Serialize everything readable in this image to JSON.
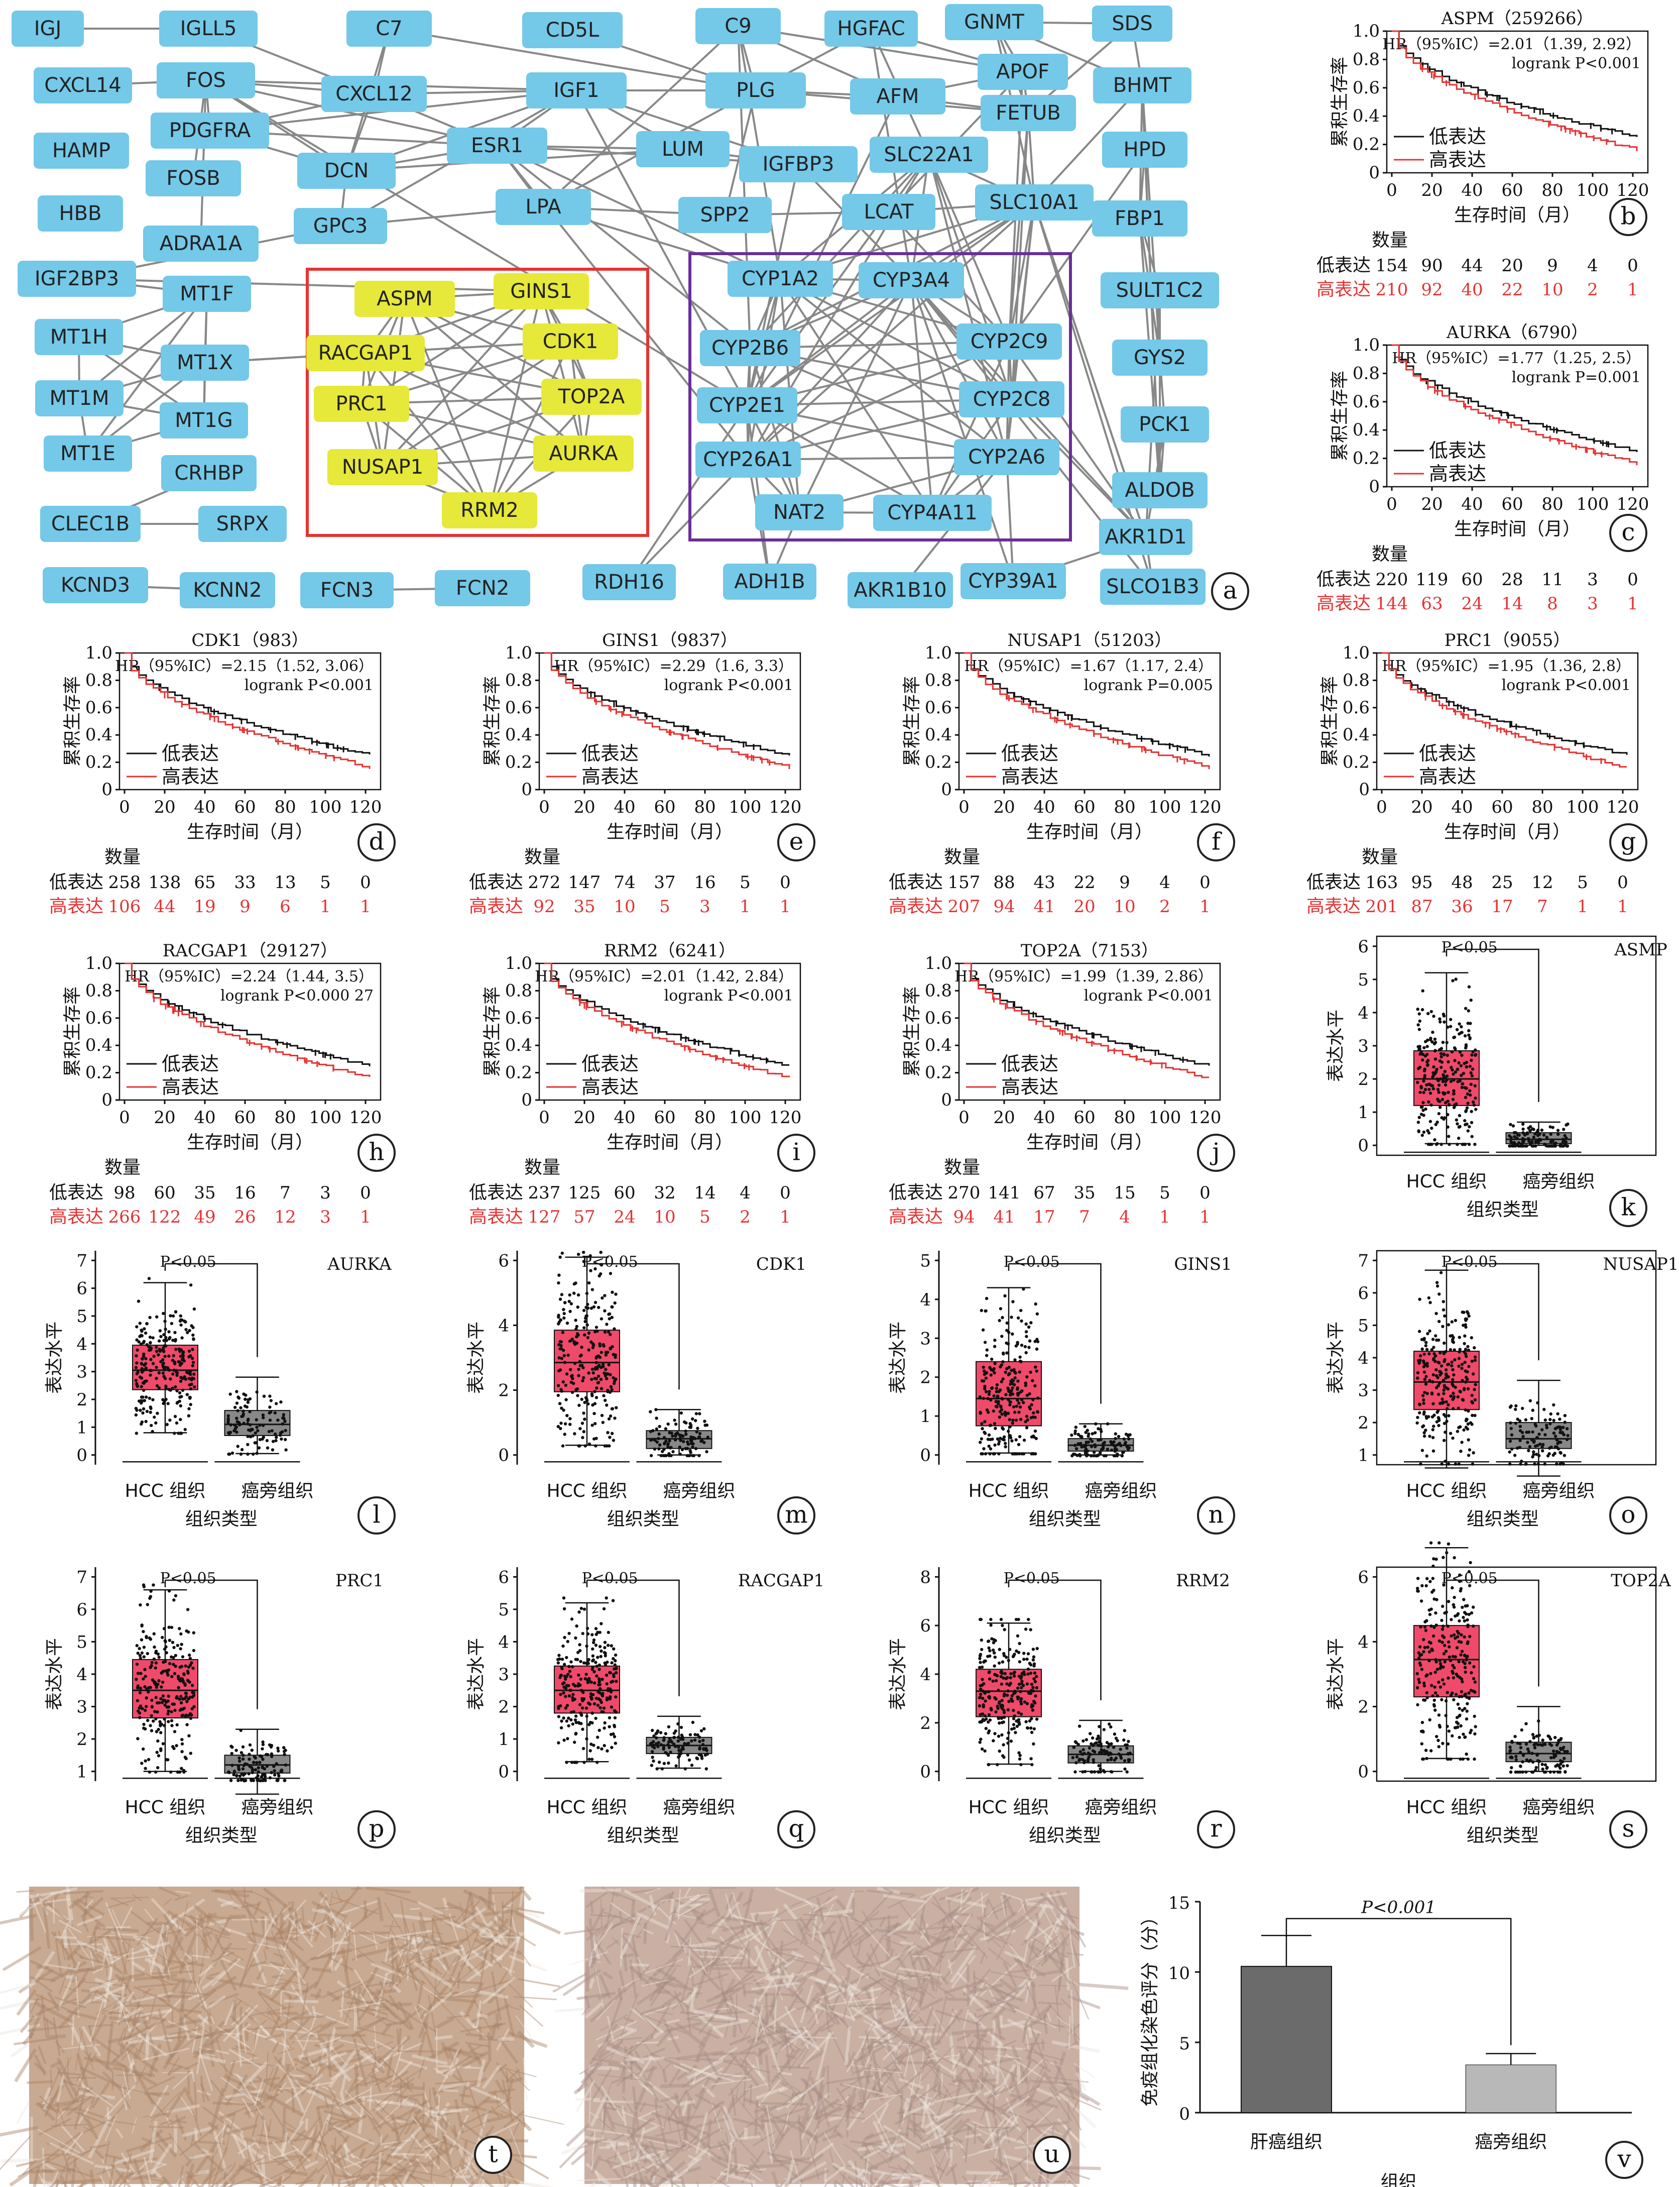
{
  "figure": {
    "panel_tags": [
      "a",
      "b",
      "c",
      "d",
      "e",
      "f",
      "g",
      "h",
      "i",
      "j",
      "k",
      "l",
      "m",
      "n",
      "o",
      "p",
      "q",
      "r",
      "s",
      "t",
      "u",
      "v"
    ],
    "legend_low": "低表达",
    "legend_high": "高表达",
    "km_ylabel": "累积生存率",
    "km_xlabel": "生存时间（月）",
    "risk_header": "数量",
    "box_ylabel": "表达水平",
    "box_xlabel": "组织类型",
    "box_categories": [
      "HCC 组织",
      "癌旁组织"
    ],
    "box_pval": "P<0.05",
    "colors": {
      "node": "#74c8e8",
      "hub": "#e6e83a",
      "low": "#111111",
      "high": "#e53333",
      "hcc_box": "#f04a6a",
      "adj_box": "#888888"
    }
  },
  "network": {
    "nodes": [
      "IGJ",
      "IGLL5",
      "C7",
      "CD5L",
      "C9",
      "HGFAC",
      "GNMT",
      "SDS",
      "CXCL14",
      "FOS",
      "CXCL12",
      "IGF1",
      "PLG",
      "AFM",
      "APOF",
      "BHMT",
      "HAMP",
      "PDGFRA",
      "FOSB",
      "DCN",
      "ESR1",
      "LUM",
      "IGFBP3",
      "SLC22A1",
      "FETUB",
      "HPD",
      "HBB",
      "ADRA1A",
      "GPC3",
      "LPA",
      "SPP2",
      "LCAT",
      "SLC10A1",
      "FBP1",
      "IGF2BP3",
      "MT1F",
      "ASPM",
      "GINS1",
      "CYP1A2",
      "CYP3A4",
      "SULT1C2",
      "MT1H",
      "MT1X",
      "RACGAP1",
      "CDK1",
      "CYP2B6",
      "CYP2C9",
      "GYS2",
      "MT1M",
      "MT1G",
      "PRC1",
      "TOP2A",
      "CYP2E1",
      "CYP2C8",
      "PCK1",
      "MT1E",
      "NUSAP1",
      "AURKA",
      "CYP26A1",
      "CYP2A6",
      "CRHBP",
      "RRM2",
      "NAT2",
      "CYP4A11",
      "ALDOB",
      "CLEC1B",
      "SRPX",
      "AKR1D1",
      "KCND3",
      "KCNN2",
      "FCN3",
      "FCN2",
      "RDH16",
      "ADH1B",
      "AKR1B10",
      "CYP39A1",
      "SLCO1B3"
    ],
    "hub_genes": [
      "ASPM",
      "GINS1",
      "RACGAP1",
      "CDK1",
      "PRC1",
      "TOP2A",
      "NUSAP1",
      "AURKA",
      "RRM2"
    ]
  },
  "km_plots": [
    {
      "tag": "b",
      "title": "ASPM（259266）",
      "hr": "HR（95%IC）=2.01（1.39, 2.92）",
      "logrank": "logrank P<0.001",
      "low_counts": [
        "154",
        "90",
        "44",
        "20",
        "9",
        "4",
        "0"
      ],
      "high_counts": [
        "210",
        "92",
        "40",
        "22",
        "10",
        "2",
        "1"
      ]
    },
    {
      "tag": "c",
      "title": "AURKA（6790）",
      "hr": "HR（95%IC）=1.77（1.25, 2.5）",
      "logrank": "logrank P=0.001",
      "low_counts": [
        "220",
        "119",
        "60",
        "28",
        "11",
        "3",
        "0"
      ],
      "high_counts": [
        "144",
        "63",
        "24",
        "14",
        "8",
        "3",
        "1"
      ]
    },
    {
      "tag": "d",
      "title": "CDK1（983）",
      "hr": "HR（95%IC）=2.15（1.52, 3.06）",
      "logrank": "logrank P<0.001",
      "low_counts": [
        "258",
        "138",
        "65",
        "33",
        "13",
        "5",
        "0"
      ],
      "high_counts": [
        "106",
        "44",
        "19",
        "9",
        "6",
        "1",
        "1"
      ]
    },
    {
      "tag": "e",
      "title": "GINS1（9837）",
      "hr": "HR（95%IC）=2.29（1.6, 3.3）",
      "logrank": "logrank P<0.001",
      "low_counts": [
        "272",
        "147",
        "74",
        "37",
        "16",
        "5",
        "0"
      ],
      "high_counts": [
        "92",
        "35",
        "10",
        "5",
        "3",
        "1",
        "1"
      ]
    },
    {
      "tag": "f",
      "title": "NUSAP1（51203）",
      "hr": "HR（95%IC）=1.67（1.17, 2.4）",
      "logrank": "logrank P=0.005",
      "low_counts": [
        "157",
        "88",
        "43",
        "22",
        "9",
        "4",
        "0"
      ],
      "high_counts": [
        "207",
        "94",
        "41",
        "20",
        "10",
        "2",
        "1"
      ]
    },
    {
      "tag": "g",
      "title": "PRC1（9055）",
      "hr": "HR（95%IC）=1.95（1.36, 2.8）",
      "logrank": "logrank P<0.001",
      "low_counts": [
        "163",
        "95",
        "48",
        "25",
        "12",
        "5",
        "0"
      ],
      "high_counts": [
        "201",
        "87",
        "36",
        "17",
        "7",
        "1",
        "1"
      ]
    },
    {
      "tag": "h",
      "title": "RACGAP1（29127）",
      "hr": "HR（95%IC）=2.24（1.44, 3.5）",
      "logrank": "logrank P<0.000 27",
      "low_counts": [
        "98",
        "60",
        "35",
        "16",
        "7",
        "3",
        "0"
      ],
      "high_counts": [
        "266",
        "122",
        "49",
        "26",
        "12",
        "3",
        "1"
      ]
    },
    {
      "tag": "i",
      "title": "RRM2（6241）",
      "hr": "HR（95%IC）=2.01（1.42, 2.84）",
      "logrank": "logrank P<0.001",
      "low_counts": [
        "237",
        "125",
        "60",
        "32",
        "14",
        "4",
        "0"
      ],
      "high_counts": [
        "127",
        "57",
        "24",
        "10",
        "5",
        "2",
        "1"
      ]
    },
    {
      "tag": "j",
      "title": "TOP2A（7153）",
      "hr": "HR（95%IC）=1.99（1.39, 2.86）",
      "logrank": "logrank P<0.001",
      "low_counts": [
        "270",
        "141",
        "67",
        "35",
        "15",
        "5",
        "0"
      ],
      "high_counts": [
        "94",
        "41",
        "17",
        "7",
        "4",
        "1",
        "1"
      ]
    }
  ],
  "box_plots": [
    {
      "tag": "k",
      "gene": "ASMP",
      "ymax": 6,
      "ticks": [
        "0",
        "1",
        "2",
        "3",
        "4",
        "5",
        "6"
      ],
      "hcc": {
        "q1": 1.2,
        "med": 2.0,
        "q3": 2.85,
        "lo": 0.05,
        "hi": 5.2
      },
      "adj": {
        "q1": 0.05,
        "med": 0.18,
        "q3": 0.38,
        "lo": 0.0,
        "hi": 0.7
      }
    },
    {
      "tag": "l",
      "gene": "AURKA",
      "ymax": 7,
      "ticks": [
        "0",
        "1",
        "2",
        "3",
        "4",
        "5",
        "6",
        "7"
      ],
      "hcc": {
        "q1": 2.35,
        "med": 3.05,
        "q3": 3.95,
        "lo": 0.8,
        "hi": 6.2
      },
      "adj": {
        "q1": 0.7,
        "med": 1.1,
        "q3": 1.6,
        "lo": 0.05,
        "hi": 2.8
      }
    },
    {
      "tag": "m",
      "gene": "CDK1",
      "ymax": 7,
      "ticks": [
        "0",
        "2",
        "4",
        "6"
      ],
      "hcc": {
        "q1": 1.95,
        "med": 2.85,
        "q3": 3.85,
        "lo": 0.3,
        "hi": 6.1
      },
      "adj": {
        "q1": 0.2,
        "med": 0.5,
        "q3": 0.75,
        "lo": 0.0,
        "hi": 1.4
      }
    },
    {
      "tag": "n",
      "gene": "GINS1",
      "ymax": 5,
      "ticks": [
        "0",
        "1",
        "2",
        "3",
        "4",
        "5"
      ],
      "hcc": {
        "q1": 0.75,
        "med": 1.45,
        "q3": 2.4,
        "lo": 0.05,
        "hi": 4.3
      },
      "adj": {
        "q1": 0.1,
        "med": 0.25,
        "q3": 0.42,
        "lo": 0.0,
        "hi": 0.8
      }
    },
    {
      "tag": "o",
      "gene": "NUSAP1",
      "ymax": 7,
      "ticks": [
        "1",
        "2",
        "3",
        "4",
        "5",
        "6",
        "7"
      ],
      "hcc": {
        "q1": 2.4,
        "med": 3.25,
        "q3": 4.2,
        "lo": 0.6,
        "hi": 6.7
      },
      "adj": {
        "q1": 1.2,
        "med": 1.5,
        "q3": 2.0,
        "lo": 0.35,
        "hi": 3.3
      }
    },
    {
      "tag": "p",
      "gene": "PRC1",
      "ymax": 7,
      "ticks": [
        "1",
        "2",
        "3",
        "4",
        "5",
        "6",
        "7"
      ],
      "hcc": {
        "q1": 2.65,
        "med": 3.5,
        "q3": 4.45,
        "lo": 1.0,
        "hi": 6.6
      },
      "adj": {
        "q1": 0.95,
        "med": 1.2,
        "q3": 1.5,
        "lo": 0.3,
        "hi": 2.3
      }
    },
    {
      "tag": "q",
      "gene": "RACGAP1",
      "ymax": 6,
      "ticks": [
        "0",
        "1",
        "2",
        "3",
        "4",
        "5",
        "6"
      ],
      "hcc": {
        "q1": 1.8,
        "med": 2.5,
        "q3": 3.25,
        "lo": 0.3,
        "hi": 5.2
      },
      "adj": {
        "q1": 0.55,
        "med": 0.8,
        "q3": 1.05,
        "lo": 0.1,
        "hi": 1.7
      }
    },
    {
      "tag": "r",
      "gene": "RRM2",
      "ymax": 8,
      "ticks": [
        "0",
        "2",
        "4",
        "6",
        "8"
      ],
      "hcc": {
        "q1": 2.25,
        "med": 3.3,
        "q3": 4.2,
        "lo": 0.3,
        "hi": 6.1
      },
      "adj": {
        "q1": 0.35,
        "med": 0.7,
        "q3": 1.05,
        "lo": 0.0,
        "hi": 2.1
      }
    },
    {
      "tag": "s",
      "gene": "TOP2A",
      "ymax": 7,
      "ticks": [
        "0",
        "2",
        "4",
        "6"
      ],
      "hcc": {
        "q1": 2.3,
        "med": 3.45,
        "q3": 4.5,
        "lo": 0.4,
        "hi": 6.9
      },
      "adj": {
        "q1": 0.3,
        "med": 0.55,
        "q3": 0.9,
        "lo": 0.0,
        "hi": 2.0
      }
    }
  ],
  "ihc": {
    "ylabel": "免疫组化染色评分（分）",
    "xlabel": "组织",
    "pval": "P<0.001",
    "ticks": [
      "0",
      "5",
      "10",
      "15"
    ]
  },
  "chart_data": [
    {
      "type": "bar",
      "panel": "v",
      "title": "",
      "categories": [
        "肝癌组织",
        "癌旁组织"
      ],
      "values": [
        10.4,
        3.4
      ],
      "errors": [
        2.2,
        0.8
      ],
      "xlabel": "组织",
      "ylabel": "免疫组化染色评分（分）",
      "ylim": [
        0,
        15
      ],
      "annotation": "P<0.001"
    }
  ]
}
